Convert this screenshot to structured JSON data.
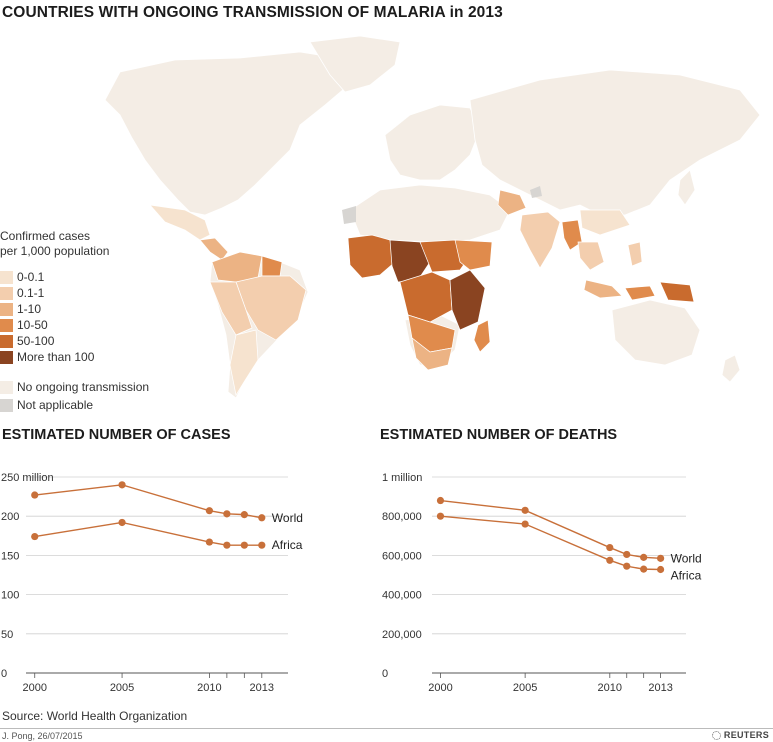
{
  "map": {
    "title": "COUNTRIES WITH ONGOING TRANSMISSION OF MALARIA in 2013",
    "legend": {
      "title_line1": "Confirmed cases",
      "title_line2": "per 1,000 population",
      "items": [
        {
          "label": "0-0.1",
          "color": "#f6e3cf"
        },
        {
          "label": "0.1-1",
          "color": "#f3ceae"
        },
        {
          "label": "1-10",
          "color": "#ecb384"
        },
        {
          "label": "10-50",
          "color": "#e08b4c"
        },
        {
          "label": "50-100",
          "color": "#c96b2e"
        },
        {
          "label": "More than 100",
          "color": "#8a4421"
        }
      ],
      "no_transmission": {
        "label": "No ongoing transmission",
        "color": "#f4ede5"
      },
      "not_applicable": {
        "label": "Not applicable",
        "color": "#d7d5d2"
      }
    }
  },
  "chart_data": [
    {
      "type": "line",
      "title": "ESTIMATED NUMBER OF CASES",
      "x": [
        2000,
        2005,
        2010,
        2011,
        2012,
        2013
      ],
      "xticks": [
        "2000",
        "2005",
        "2010",
        "2013"
      ],
      "yticks": [
        0,
        50,
        100,
        150,
        200,
        250
      ],
      "ytick_labels": [
        "0",
        "50",
        "100",
        "150",
        "200",
        "250 million"
      ],
      "ylim": [
        0,
        250
      ],
      "xlim": [
        1999.5,
        2014.5
      ],
      "series": [
        {
          "name": "World",
          "values": [
            227,
            240,
            207,
            203,
            202,
            198
          ]
        },
        {
          "name": "Africa",
          "values": [
            174,
            192,
            167,
            163,
            163,
            163
          ]
        }
      ],
      "grid": true,
      "color": "#c8703a"
    },
    {
      "type": "line",
      "title": "ESTIMATED NUMBER OF DEATHS",
      "x": [
        2000,
        2005,
        2010,
        2011,
        2012,
        2013
      ],
      "xticks": [
        "2000",
        "2005",
        "2010",
        "2013"
      ],
      "yticks": [
        0,
        200000,
        400000,
        600000,
        800000,
        1000000
      ],
      "ytick_labels": [
        "0",
        "200,000",
        "400,000",
        "600,000",
        "800,000",
        "1 million"
      ],
      "ylim": [
        0,
        1000000
      ],
      "xlim": [
        1999.5,
        2014.5
      ],
      "series": [
        {
          "name": "World",
          "values": [
            880000,
            830000,
            640000,
            605000,
            590000,
            585000
          ]
        },
        {
          "name": "Africa",
          "values": [
            800000,
            760000,
            575000,
            545000,
            530000,
            528000
          ]
        }
      ],
      "grid": true,
      "color": "#c8703a"
    }
  ],
  "footer": {
    "source": "Source: World Health Organization",
    "credit": "J. Pong, 26/07/2015",
    "brand": "REUTERS"
  }
}
